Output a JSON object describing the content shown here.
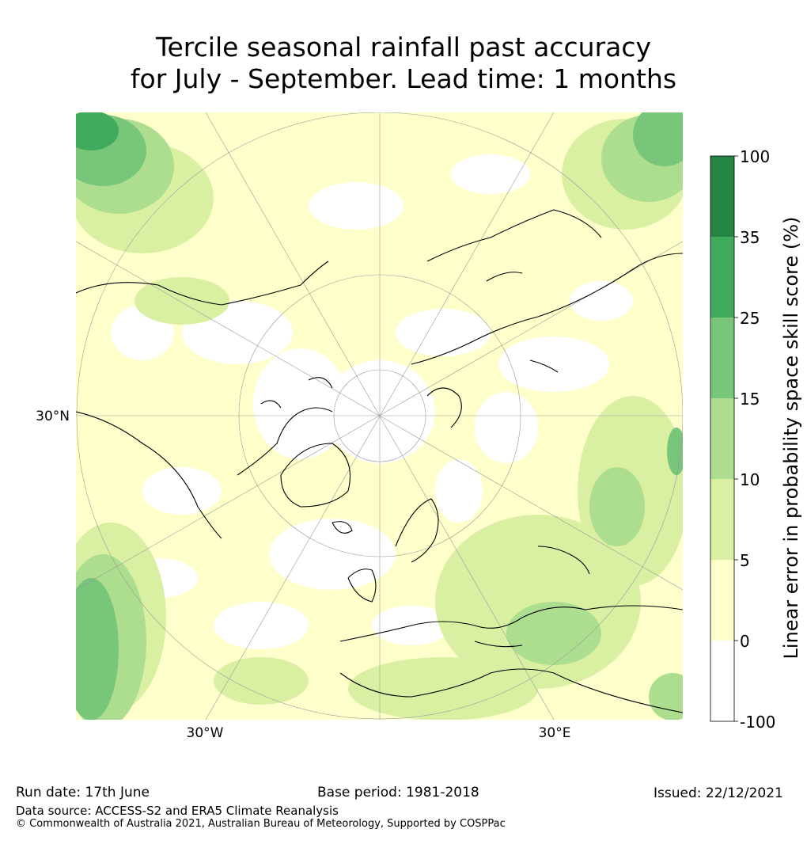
{
  "title": {
    "line1": "Tercile seasonal rainfall past accuracy",
    "line2": "for July - September. Lead time: 1 months"
  },
  "map": {
    "lat_label": "30°N",
    "lon_labels": [
      "30°W",
      "30°E"
    ]
  },
  "colorbar": {
    "label": "Linear error in probability space skill score (%)",
    "levels": [
      "100",
      "35",
      "25",
      "15",
      "10",
      "5",
      "0",
      "-100"
    ],
    "colors": [
      "#238443",
      "#41ab5d",
      "#78c679",
      "#addd8e",
      "#d9f0a3",
      "#ffffcc",
      "#ffffff"
    ]
  },
  "footer": {
    "run_date": "Run date: 17th June",
    "base_period": "Base period: 1981-2018",
    "issued": "Issued: 22/12/2021",
    "data_source": "Data source: ACCESS-S2 and ERA5 Climate Reanalysis",
    "copyright": "© Commonwealth of Australia 2021, Australian Bureau of Meteorology, Supported by COSPPac"
  }
}
